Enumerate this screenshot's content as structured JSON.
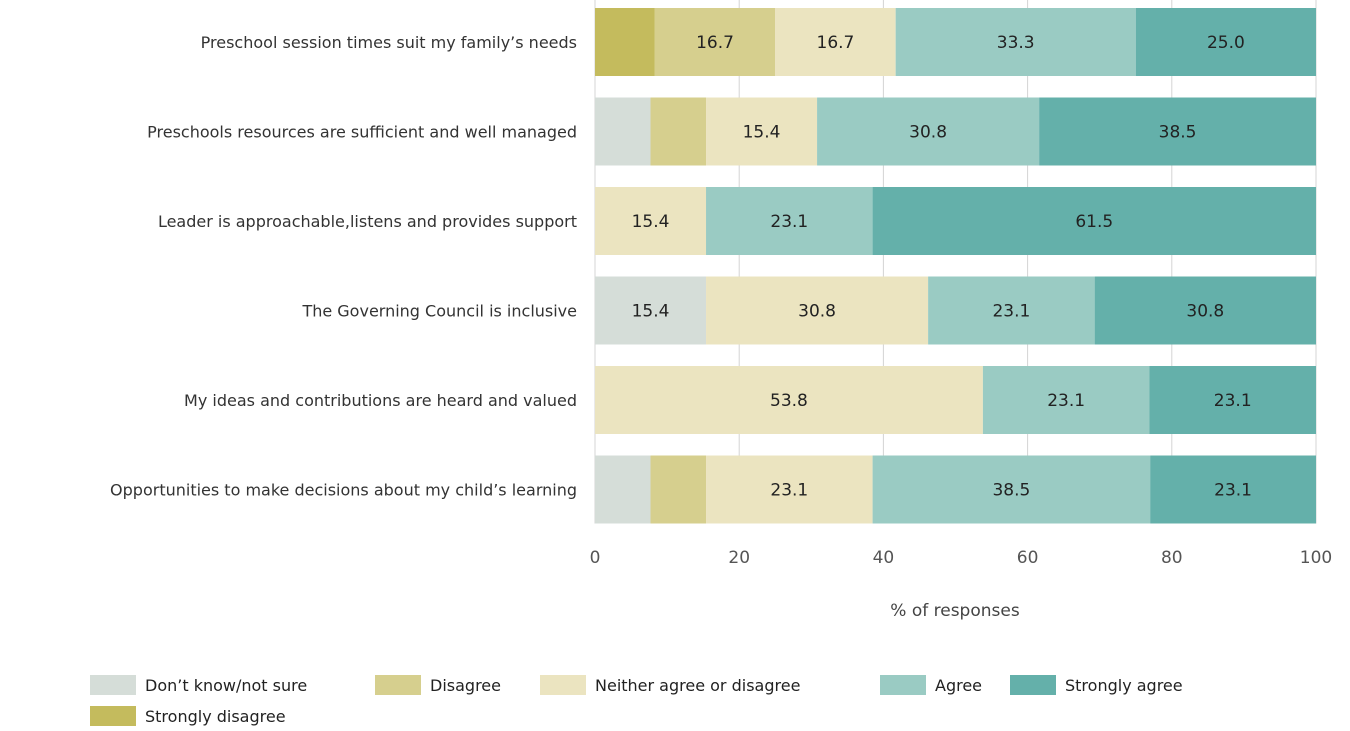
{
  "chart_data": {
    "type": "bar",
    "orientation": "horizontal",
    "stacked": true,
    "categories": [
      "Preschool session times suit my family’s needs",
      "Preschools resources are sufficient and well managed",
      "Leader is approachable,listens and provides support",
      "The Governing Council is inclusive",
      "My ideas and contributions are heard and valued",
      "Opportunities to make decisions about my child’s learning"
    ],
    "series": [
      {
        "name": "Strongly disagree",
        "color": "#c4bb5d",
        "values": [
          8.3,
          0,
          0,
          0,
          0,
          0
        ],
        "labels": [
          "",
          "",
          "",
          "",
          "",
          ""
        ]
      },
      {
        "name": "Don’t know/not sure",
        "color": "#d5ddd8",
        "values": [
          0,
          7.7,
          0,
          15.4,
          0,
          7.7
        ],
        "labels": [
          "",
          "",
          "",
          "15.4",
          "",
          ""
        ]
      },
      {
        "name": "Disagree",
        "color": "#d6cf8e",
        "values": [
          16.7,
          7.7,
          0,
          0,
          0,
          7.7
        ],
        "labels": [
          "16.7",
          "",
          "",
          "",
          "",
          ""
        ]
      },
      {
        "name": "Neither agree or disagree",
        "color": "#ebe4c0",
        "values": [
          16.7,
          15.4,
          15.4,
          30.8,
          53.8,
          23.1
        ],
        "labels": [
          "16.7",
          "15.4",
          "15.4",
          "30.8",
          "53.8",
          "23.1"
        ]
      },
      {
        "name": "Agree",
        "color": "#9acbc3",
        "values": [
          33.3,
          30.8,
          23.1,
          23.1,
          23.1,
          38.5
        ],
        "labels": [
          "33.3",
          "30.8",
          "23.1",
          "23.1",
          "23.1",
          "38.5"
        ]
      },
      {
        "name": "Strongly agree",
        "color": "#64b0aa",
        "values": [
          25.0,
          38.5,
          61.5,
          30.8,
          23.1,
          23.1
        ],
        "labels": [
          "25.0",
          "38.5",
          "61.5",
          "30.8",
          "23.1",
          "23.1"
        ]
      }
    ],
    "xlabel": "% of responses",
    "xlim": [
      0,
      100
    ],
    "xticks": [
      "0",
      "20",
      "40",
      "60",
      "80",
      "100"
    ],
    "grid": "vertical",
    "legend": {
      "position": "bottom",
      "order": [
        "Don’t know/not sure",
        "Disagree",
        "Neither agree or disagree",
        "Agree",
        "Strongly agree",
        "Strongly disagree"
      ]
    }
  }
}
